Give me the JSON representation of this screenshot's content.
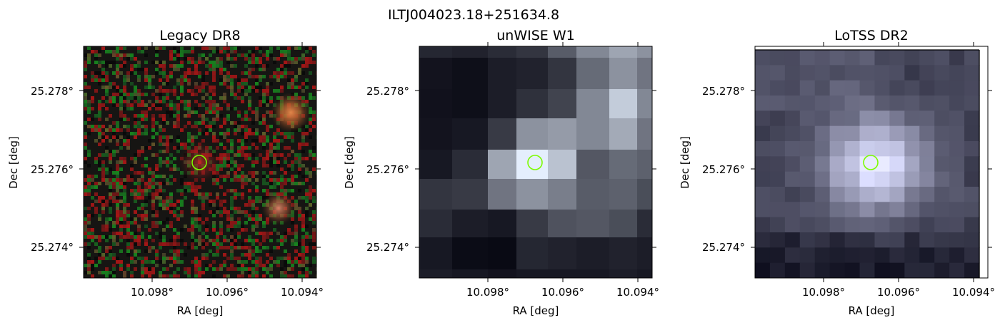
{
  "figure_title": "ILTJ004023.18+251634.8",
  "panels": [
    {
      "title": "Legacy DR8",
      "xlabel": "RA [deg]",
      "ylabel": "Dec [deg]",
      "xticks": [
        "10.098°",
        "10.096°",
        "10.094°"
      ],
      "yticks": [
        "25.278°",
        "25.276°",
        "25.274°"
      ],
      "image": "optical color cutout, dark noisy background with a faint red source at center and two diffuse orange sources on the right"
    },
    {
      "title": "unWISE W1",
      "xlabel": "RA [deg]",
      "ylabel": "Dec [deg]",
      "xticks": [
        "10.098°",
        "10.096°",
        "10.094°"
      ],
      "yticks": [
        "25.278°",
        "25.276°",
        "25.274°"
      ],
      "image": "coarse-pixel infrared cutout in grayscale-blue, brightest pixel at center and another bright region top-right"
    },
    {
      "title": "LoTSS DR2",
      "xlabel": "RA [deg]",
      "ylabel": "Dec [deg]",
      "xticks": [
        "10.098°",
        "10.096°",
        "10.094°"
      ],
      "yticks": [
        "25.278°",
        "25.276°",
        "25.274°"
      ],
      "image": "radio cutout in gray-purple, compact bright blob at center"
    }
  ],
  "marker_color": "#7CFC00",
  "marker_shape": "circle"
}
